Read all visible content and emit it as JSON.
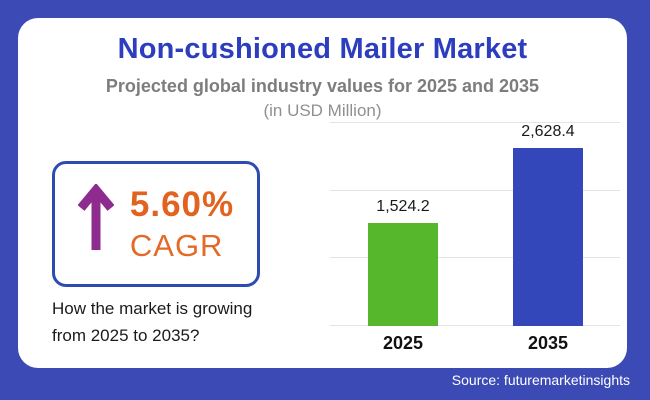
{
  "header": {
    "title": "Non-cushioned Mailer Market",
    "subtitle": "Projected global industry values for 2025 and 2035",
    "unit_note": "(in USD Million)"
  },
  "cagr": {
    "value": "5.60%",
    "label": "CAGR",
    "arrow_icon": "up-arrow",
    "caption_line1": "How the market is growing",
    "caption_line2": "from 2025 to 2035?"
  },
  "footer": {
    "source": "Source: futuremarketinsights"
  },
  "colors": {
    "background": "#3b4ab4",
    "card": "#ffffff",
    "title": "#2c3dbe",
    "subtitle": "#7d7d7d",
    "unit_note": "#909090",
    "cagr_border": "#2e4bb2",
    "cagr_value": "#e2621f",
    "cagr_label": "#e46a28",
    "arrow": "#8e2b8e",
    "gridline": "#e4e4e4",
    "source_text": "#ffffff"
  },
  "chart_data": {
    "type": "bar",
    "categories": [
      "2025",
      "2035"
    ],
    "values": [
      1524.2,
      2628.4
    ],
    "value_labels": [
      "1,524.2",
      "2,628.4"
    ],
    "bar_colors": [
      "#56b62c",
      "#3347bb"
    ],
    "title": "Non-cushioned Mailer Market",
    "subtitle": "Projected global industry values for 2025 and 2035",
    "xlabel": "",
    "ylabel": "in USD Million",
    "ylim": [
      0,
      3000
    ],
    "gridlines": [
      0,
      1000,
      2000,
      3000
    ],
    "grid": true,
    "legend_position": "none"
  }
}
